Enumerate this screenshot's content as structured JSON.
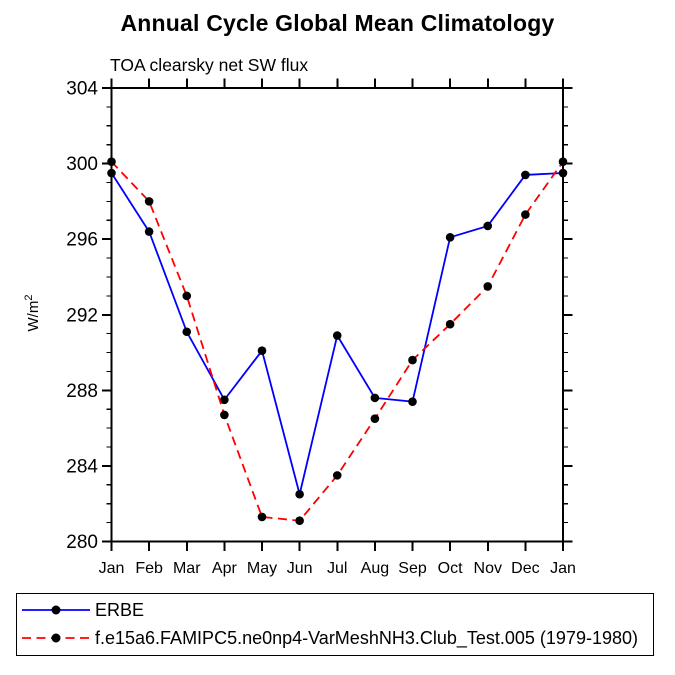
{
  "chart_data": {
    "type": "line",
    "title": "Annual Cycle Global Mean Climatology",
    "subtitle": "TOA clearsky net SW flux",
    "ylabel": {
      "base": "W/m",
      "sup": "2"
    },
    "x_categories": [
      "Jan",
      "Feb",
      "Mar",
      "Apr",
      "May",
      "Jun",
      "Jul",
      "Aug",
      "Sep",
      "Oct",
      "Nov",
      "Dec",
      "Jan"
    ],
    "ylim": [
      280,
      304
    ],
    "ytick_major_step": 4,
    "ytick_minor_step": 1,
    "grid": false,
    "legend_position": "bottom",
    "axis_color": "#000000",
    "marker_shape": "filled-circle",
    "series": [
      {
        "name": "ERBE",
        "color": "#0000ff",
        "line_style": "solid",
        "marker_color": "#000000",
        "values": [
          299.5,
          296.4,
          291.1,
          287.5,
          290.1,
          282.5,
          290.9,
          287.6,
          287.4,
          296.1,
          296.7,
          299.4,
          299.5
        ]
      },
      {
        "name": "f.e15a6.FAMIPC5.ne0np4-VarMeshNH3.Club_Test.005 (1979-1980)",
        "color": "#ff0000",
        "line_style": "dashed",
        "marker_color": "#000000",
        "values": [
          300.1,
          298.0,
          293.0,
          286.7,
          281.3,
          281.1,
          283.5,
          286.5,
          289.6,
          291.5,
          293.5,
          297.3,
          300.1
        ]
      }
    ]
  }
}
